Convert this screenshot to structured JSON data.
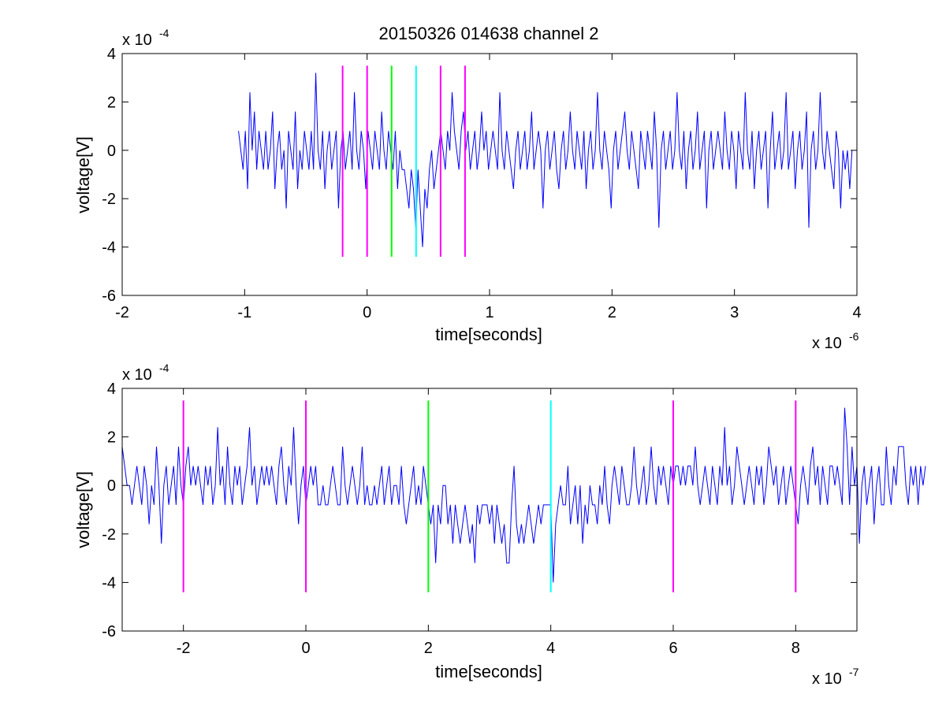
{
  "figure": {
    "title": "20150326 014638 channel 2"
  },
  "chart_data": [
    {
      "type": "line",
      "title": "20150326 014638 channel 2",
      "xlabel": "time[seconds]",
      "ylabel": "voltage[V]",
      "x_multiplier_label": "x 10",
      "x_multiplier_exp": "-6",
      "y_multiplier_label": "x 10",
      "y_multiplier_exp": "-4",
      "xlim": [
        -2,
        4
      ],
      "ylim": [
        -6,
        4
      ],
      "xticks": [
        -2,
        -1,
        0,
        1,
        2,
        3,
        4
      ],
      "xtick_labels": [
        "-2",
        "-1",
        "0",
        "1",
        "2",
        "3",
        "4"
      ],
      "yticks": [
        -6,
        -4,
        -2,
        0,
        2,
        4
      ],
      "ytick_labels": [
        "-6",
        "-4",
        "-2",
        "0",
        "2",
        "4"
      ],
      "grid": false,
      "series": [
        {
          "color": "#0000ff",
          "style": "stepped noisy trace",
          "x_range": [
            -1.05,
            3.96
          ],
          "quantization_step": 0.8,
          "values": [
            0.8,
            0.0,
            -0.8,
            0.8,
            -1.6,
            2.4,
            0.0,
            1.6,
            -0.8,
            0.8,
            0.0,
            -0.8,
            0.8,
            -0.8,
            0.0,
            1.6,
            -1.6,
            0.0,
            0.8,
            -0.8,
            0.0,
            -2.4,
            0.8,
            0.0,
            -0.8,
            1.6,
            -1.6,
            0.0,
            -0.8,
            0.8,
            0.0,
            -0.8,
            0.8,
            -0.8,
            3.2,
            0.0,
            -0.8,
            0.8,
            -1.6,
            0.0,
            0.8,
            -0.8,
            0.0,
            0.8,
            -2.4,
            0.0,
            0.8,
            -0.8,
            0.0,
            0.8,
            -0.8,
            2.4,
            0.0,
            -0.8,
            0.8,
            0.0,
            -1.6,
            0.8,
            0.0,
            -0.8,
            0.8,
            0.0,
            -0.8,
            1.6,
            0.0,
            -0.8,
            0.8,
            0.0,
            -0.8,
            0.8,
            -1.6,
            0.0,
            -0.8,
            -0.8,
            -1.6,
            -2.4,
            -0.8,
            -1.6,
            -3.2,
            -0.8,
            -2.4,
            -4.0,
            -1.6,
            -2.4,
            -0.8,
            0.0,
            -1.6,
            -0.8,
            0.0,
            0.8,
            0.0,
            -0.8,
            0.8,
            0.0,
            2.4,
            0.8,
            0.0,
            -0.8,
            0.8,
            1.6,
            0.0,
            0.8,
            -0.8,
            0.0,
            0.8,
            -0.8,
            0.0,
            1.6,
            0.0,
            0.8,
            -0.8,
            0.0,
            0.8,
            0.0,
            -0.8,
            2.4,
            0.0,
            -0.8,
            0.8,
            0.0,
            -0.8,
            -1.6,
            0.0,
            0.8,
            -0.8,
            0.0,
            0.8,
            -0.8,
            0.0,
            1.6,
            -0.8,
            0.0,
            0.8,
            0.0,
            -2.4,
            0.0,
            0.8,
            -0.8,
            0.0,
            0.8,
            -0.8,
            -1.6,
            0.0,
            0.8,
            -0.8,
            0.0,
            1.6,
            0.0,
            -0.8,
            0.8,
            0.0,
            -0.8,
            0.8,
            -1.6,
            0.0,
            0.8,
            -0.8,
            0.0,
            2.4,
            0.0,
            -0.8,
            0.8,
            0.0,
            -0.8,
            -2.4,
            0.0,
            0.8,
            -0.8,
            0.0,
            0.8,
            1.6,
            0.0,
            -0.8,
            0.8,
            0.0,
            -0.8,
            -1.6,
            0.8,
            0.0,
            -0.8,
            0.8,
            0.0,
            -0.8,
            1.6,
            0.0,
            -3.2,
            0.0,
            0.8,
            -0.8,
            0.0,
            0.8,
            -0.8,
            0.0,
            2.4,
            0.0,
            -0.8,
            0.8,
            -1.6,
            0.0,
            0.8,
            -0.8,
            0.0,
            1.6,
            -0.8,
            0.0,
            0.8,
            -2.4,
            0.0,
            0.8,
            -0.8,
            0.0,
            0.8,
            0.0,
            -0.8,
            1.6,
            0.0,
            -0.8,
            0.8,
            0.0,
            -1.6,
            0.8,
            0.0,
            -0.8,
            2.4,
            0.0,
            -0.8,
            0.8,
            -1.6,
            0.0,
            0.8,
            -0.8,
            0.0,
            0.8,
            -2.4,
            0.0,
            1.6,
            -0.8,
            0.0,
            0.8,
            -0.8,
            0.0,
            2.4,
            -0.8,
            0.0,
            0.8,
            -1.6,
            0.0,
            0.8,
            -0.8,
            0.0,
            1.6,
            -3.2,
            0.0,
            0.8,
            -0.8,
            0.0,
            2.4,
            0.0,
            -0.8,
            0.8,
            0.0,
            -0.8,
            -1.6,
            0.8,
            0.0,
            -2.4,
            0.0,
            -0.8,
            0.0,
            -1.6,
            0.0
          ]
        }
      ],
      "markers": [
        {
          "x": -0.2,
          "y_range": [
            -4.4,
            3.5
          ],
          "color": "#ff00ff"
        },
        {
          "x": 0.0,
          "y_range": [
            -4.4,
            3.5
          ],
          "color": "#ff00ff"
        },
        {
          "x": 0.2,
          "y_range": [
            -4.4,
            3.5
          ],
          "color": "#00ff00"
        },
        {
          "x": 0.4,
          "y_range": [
            -4.4,
            3.5
          ],
          "color": "#00ffff"
        },
        {
          "x": 0.6,
          "y_range": [
            -4.4,
            3.5
          ],
          "color": "#ff00ff"
        },
        {
          "x": 0.8,
          "y_range": [
            -4.4,
            3.5
          ],
          "color": "#ff00ff"
        }
      ]
    },
    {
      "type": "line",
      "title": "",
      "xlabel": "time[seconds]",
      "ylabel": "voltage[V]",
      "x_multiplier_label": "x 10",
      "x_multiplier_exp": "-7",
      "y_multiplier_label": "x 10",
      "y_multiplier_exp": "-4",
      "xlim": [
        -3,
        9
      ],
      "ylim": [
        -6,
        4
      ],
      "xticks": [
        -2,
        0,
        2,
        4,
        6,
        8
      ],
      "xtick_labels": [
        "-2",
        "0",
        "2",
        "4",
        "6",
        "8"
      ],
      "yticks": [
        -6,
        -4,
        -2,
        0,
        2,
        4
      ],
      "ytick_labels": [
        "-6",
        "-4",
        "-2",
        "0",
        "2",
        "4"
      ],
      "grid": false,
      "series": [
        {
          "color": "#0000ff",
          "x_start": -3.0,
          "x_step": 0.04,
          "values": [
            1.6,
            0.8,
            0.0,
            0.0,
            -0.8,
            0.0,
            0.8,
            0.0,
            -0.8,
            0.8,
            0.0,
            -1.6,
            0.0,
            -0.8,
            1.6,
            0.0,
            -2.4,
            0.0,
            0.8,
            -0.8,
            0.0,
            0.8,
            -0.8,
            1.6,
            0.0,
            -0.8,
            0.8,
            1.6,
            0.0,
            0.8,
            0.0,
            0.8,
            0.0,
            -0.8,
            0.8,
            0.0,
            0.8,
            -0.8,
            0.0,
            2.4,
            0.0,
            0.8,
            -0.8,
            1.6,
            0.0,
            -0.8,
            0.8,
            0.0,
            0.8,
            -0.8,
            0.0,
            0.8,
            2.4,
            0.0,
            0.8,
            -0.8,
            0.0,
            0.8,
            0.0,
            0.8,
            0.0,
            0.8,
            0.0,
            -0.8,
            0.8,
            1.6,
            0.0,
            -0.8,
            0.8,
            0.0,
            2.4,
            0.0,
            -1.6,
            0.0,
            0.8,
            -0.8,
            0.0,
            0.8,
            0.0,
            0.8,
            -0.8,
            -0.8,
            0.0,
            -0.8,
            -0.8,
            0.0,
            0.8,
            0.0,
            -0.8,
            -0.8,
            1.6,
            0.0,
            -0.8,
            0.0,
            0.8,
            0.0,
            -0.8,
            0.0,
            1.6,
            -0.8,
            0.0,
            -0.8,
            -0.8,
            0.0,
            -0.8,
            0.0,
            0.8,
            -0.8,
            0.0,
            0.8,
            -0.8,
            0.0,
            0.0,
            -0.8,
            0.8,
            -0.8,
            -1.6,
            -0.8,
            0.0,
            0.8,
            -0.8,
            0.0,
            -0.8,
            0.8,
            0.0,
            -0.8,
            -1.6,
            -0.8,
            -3.2,
            -0.8,
            -1.6,
            0.0,
            0.0,
            -1.6,
            -0.8,
            -2.4,
            -0.8,
            -1.6,
            -2.4,
            -1.6,
            -0.8,
            -1.6,
            -2.4,
            -1.6,
            -3.2,
            -0.8,
            -1.6,
            -0.8,
            -0.8,
            -0.8,
            -1.6,
            -0.8,
            -2.4,
            -0.8,
            -1.6,
            -2.4,
            -1.6,
            -3.2,
            -3.2,
            -0.8,
            0.8,
            -1.6,
            -2.4,
            -1.6,
            -2.4,
            -1.6,
            -0.8,
            -1.6,
            -2.4,
            -1.6,
            -0.8,
            -1.6,
            -0.8,
            -0.8,
            -0.8,
            -0.8,
            -4.0,
            -1.6,
            -0.8,
            0.0,
            -0.8,
            -0.8,
            0.8,
            -1.6,
            -0.8,
            0.0,
            -1.6,
            0.0,
            -2.4,
            -0.8,
            -1.6,
            0.0,
            -0.8,
            -0.8,
            -1.6,
            0.0,
            -0.8,
            0.8,
            -0.8,
            -1.6,
            0.0,
            0.8,
            0.0,
            -0.8,
            0.8,
            0.0,
            -0.8,
            -0.8,
            0.0,
            1.6,
            0.0,
            -0.8,
            0.0,
            0.8,
            -0.8,
            0.0,
            1.6,
            0.0,
            -0.8,
            0.8,
            0.0,
            0.8,
            0.0,
            -0.8,
            0.8,
            0.0,
            0.8,
            0.8,
            0.0,
            0.8,
            0.0,
            0.8,
            0.8,
            0.0,
            1.6,
            0.0,
            -0.8,
            0.0,
            0.8,
            0.0,
            -0.8,
            0.8,
            0.0,
            -0.8,
            0.8,
            0.0,
            2.4,
            0.0,
            0.8,
            -0.8,
            0.0,
            1.6,
            0.8,
            0.0,
            -0.8,
            0.0,
            0.8,
            0.0,
            -0.8,
            0.8,
            0.0,
            0.8,
            -0.8,
            0.0,
            1.6,
            0.8,
            0.0,
            0.8,
            -0.8,
            0.0,
            0.8,
            -0.8,
            0.0,
            0.8,
            0.0,
            -0.8,
            -1.6,
            0.0,
            0.8,
            0.0,
            -0.8,
            0.8,
            1.6,
            0.0,
            0.8,
            -0.8,
            0.8,
            0.0,
            -0.8,
            0.8,
            0.8,
            0.0,
            0.8,
            0.0,
            -0.8,
            3.2,
            1.6,
            -0.8,
            1.6,
            0.0,
            0.8,
            -2.4,
            0.0,
            0.8,
            -0.8,
            0.0,
            0.8,
            -1.6,
            0.0,
            0.8,
            -0.8,
            -0.8,
            1.6,
            0.0,
            -0.8,
            0.8,
            0.0,
            1.6,
            1.6,
            1.6,
            0.0,
            -0.8,
            0.8,
            0.0,
            0.8,
            -0.8,
            0.8,
            0.0,
            0.8
          ]
        }
      ],
      "markers": [
        {
          "x": -2,
          "y_range": [
            -4.4,
            3.5
          ],
          "color": "#ff00ff"
        },
        {
          "x": 0,
          "y_range": [
            -4.4,
            3.5
          ],
          "color": "#ff00ff"
        },
        {
          "x": 2,
          "y_range": [
            -4.4,
            3.5
          ],
          "color": "#00ff00"
        },
        {
          "x": 4,
          "y_range": [
            -4.4,
            3.5
          ],
          "color": "#00ffff"
        },
        {
          "x": 6,
          "y_range": [
            -4.4,
            3.5
          ],
          "color": "#ff00ff"
        },
        {
          "x": 8,
          "y_range": [
            -4.4,
            3.5
          ],
          "color": "#ff00ff"
        }
      ]
    }
  ]
}
